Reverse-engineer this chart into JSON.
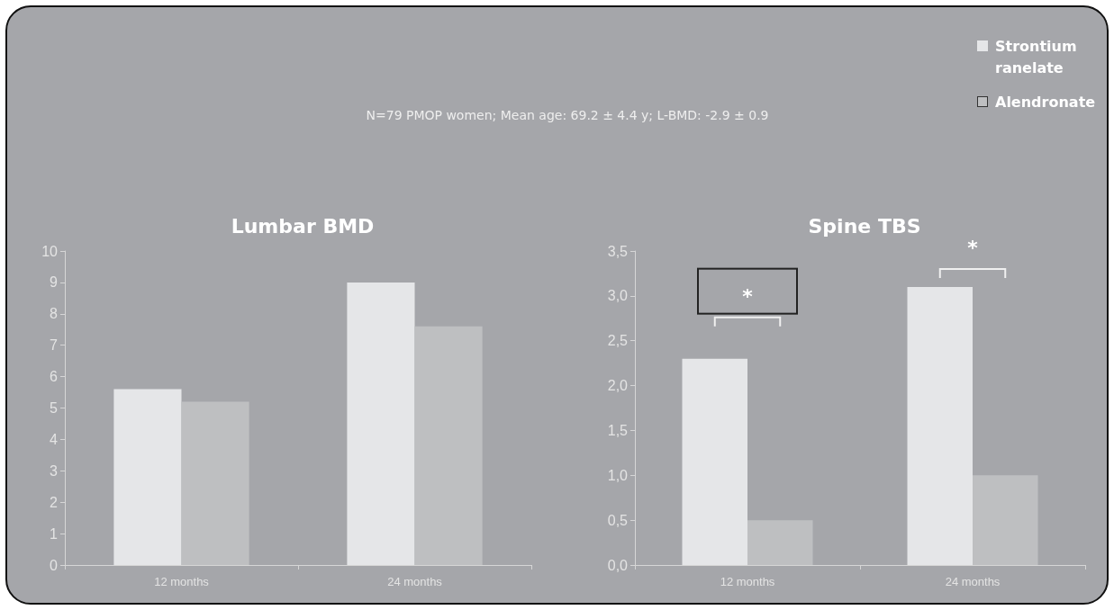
{
  "chart_data": [
    {
      "type": "bar",
      "title": "Lumbar BMD",
      "subtitle": "N=79 PMOP women; Mean age: 69.2 ± 4.4 y; L-BMD: -2.9 ± 0.9",
      "categories": [
        "12 months",
        "24 months"
      ],
      "series": [
        {
          "color": "#e5e6e8",
          "values": [
            5.6,
            9.0
          ]
        },
        {
          "color": "#bebfc1",
          "values": [
            5.2,
            7.6
          ]
        }
      ],
      "ylim": [
        0,
        10
      ],
      "yticks": [
        0,
        1,
        2,
        3,
        4,
        5,
        6,
        7,
        8,
        9,
        10
      ],
      "grid": false,
      "legend": false
    },
    {
      "type": "bar",
      "title": "Spine TBS",
      "categories": [
        "12 months",
        "24 months"
      ],
      "series": [
        {
          "name": "Strontium ranelate",
          "color": "#e5e6e8",
          "values": [
            2.3,
            3.1
          ]
        },
        {
          "name": "Alendronate",
          "color": "#bebfc1",
          "values": [
            0.5,
            1.0
          ]
        }
      ],
      "ylim": [
        0,
        3.5
      ],
      "yticks": [
        {
          "value": 0,
          "label": "0,0"
        },
        {
          "value": 0.5,
          "label": "0,5"
        },
        {
          "value": 1,
          "label": "1,0"
        },
        {
          "value": 1.5,
          "label": "1,5"
        },
        {
          "value": 2,
          "label": "2,0"
        },
        {
          "value": 2.5,
          "label": "2,5"
        },
        {
          "value": 3,
          "label": "3,0"
        },
        {
          "value": 3.5,
          "label": "3,5"
        }
      ],
      "annotations": [
        "*",
        "*"
      ],
      "grid": false,
      "legend": "top right"
    }
  ]
}
